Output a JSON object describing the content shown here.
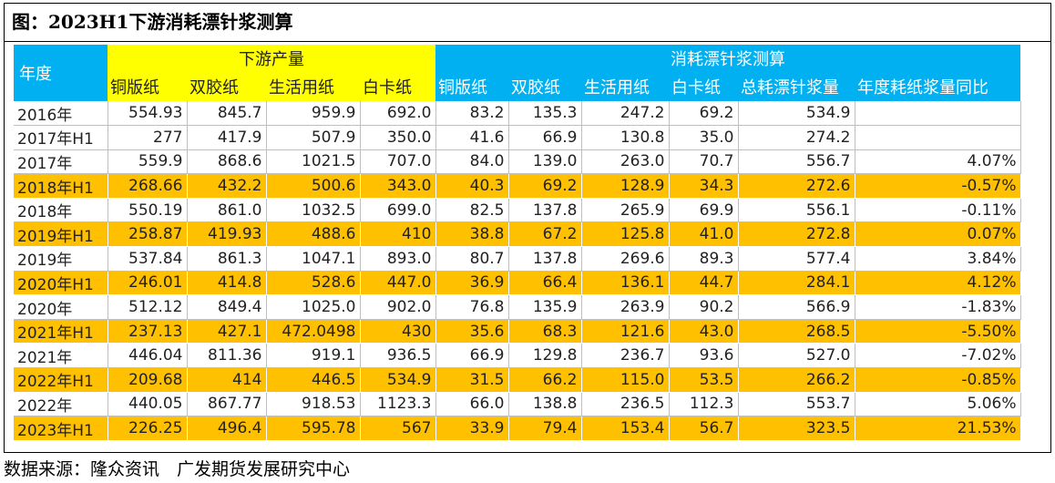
{
  "title": "图：2023H1下游消耗漂针浆测算",
  "header": {
    "year_label": "年度",
    "group_downstream": "下游产量",
    "group_consumption": "消耗漂针浆测算",
    "columns": [
      "铜版纸",
      "双胶纸",
      "生活用纸",
      "白卡纸",
      "铜版纸",
      "双胶纸",
      "生活用纸",
      "白卡纸",
      "总耗漂针浆量",
      "年度耗纸浆量同比"
    ]
  },
  "rows": [
    {
      "year": "2016年",
      "highlight": false,
      "cells": [
        "554.93",
        "845.7",
        "959.9",
        "692.0",
        "83.2",
        "135.3",
        "247.2",
        "69.2",
        "534.9",
        ""
      ]
    },
    {
      "year": "2017年H1",
      "highlight": false,
      "cells": [
        "277",
        "417.9",
        "507.9",
        "350.0",
        "41.6",
        "66.9",
        "130.8",
        "35.0",
        "274.2",
        ""
      ]
    },
    {
      "year": "2017年",
      "highlight": false,
      "cells": [
        "559.9",
        "868.6",
        "1021.5",
        "707.0",
        "84.0",
        "139.0",
        "263.0",
        "70.7",
        "556.7",
        "4.07%"
      ]
    },
    {
      "year": "2018年H1",
      "highlight": true,
      "cells": [
        "268.66",
        "432.2",
        "500.6",
        "343.0",
        "40.3",
        "69.2",
        "128.9",
        "34.3",
        "272.6",
        "-0.57%"
      ]
    },
    {
      "year": "2018年",
      "highlight": false,
      "cells": [
        "550.19",
        "861.0",
        "1032.5",
        "699.0",
        "82.5",
        "137.8",
        "265.9",
        "69.9",
        "556.1",
        "-0.11%"
      ]
    },
    {
      "year": "2019年H1",
      "highlight": true,
      "cells": [
        "258.87",
        "419.93",
        "488.6",
        "410",
        "38.8",
        "67.2",
        "125.8",
        "41.0",
        "272.8",
        "0.07%"
      ]
    },
    {
      "year": "2019年",
      "highlight": false,
      "cells": [
        "537.84",
        "861.3",
        "1047.1",
        "893.0",
        "80.7",
        "137.8",
        "269.6",
        "89.3",
        "577.4",
        "3.84%"
      ]
    },
    {
      "year": "2020年H1",
      "highlight": true,
      "cells": [
        "246.01",
        "414.8",
        "528.6",
        "447.0",
        "36.9",
        "66.4",
        "136.1",
        "44.7",
        "284.1",
        "4.12%"
      ]
    },
    {
      "year": "2020年",
      "highlight": false,
      "cells": [
        "512.12",
        "849.4",
        "1025.0",
        "902.0",
        "76.8",
        "135.9",
        "263.9",
        "90.2",
        "566.9",
        "-1.83%"
      ]
    },
    {
      "year": "2021年H1",
      "highlight": true,
      "cells": [
        "237.13",
        "427.1",
        "472.0498",
        "430",
        "35.6",
        "68.3",
        "121.6",
        "43.0",
        "268.5",
        "-5.50%"
      ]
    },
    {
      "year": "2021年",
      "highlight": false,
      "cells": [
        "446.04",
        "811.36",
        "919.1",
        "936.5",
        "66.9",
        "129.8",
        "236.7",
        "93.6",
        "527.0",
        "-7.02%"
      ]
    },
    {
      "year": "2022年H1",
      "highlight": true,
      "cells": [
        "209.68",
        "414",
        "446.5",
        "534.9",
        "31.5",
        "66.2",
        "115.0",
        "53.5",
        "266.2",
        "-0.85%"
      ]
    },
    {
      "year": "2022年",
      "highlight": false,
      "cells": [
        "440.05",
        "867.77",
        "918.53",
        "1123.3",
        "66.0",
        "138.8",
        "236.5",
        "112.3",
        "553.7",
        "5.06%"
      ]
    },
    {
      "year": "2023年H1",
      "highlight": true,
      "cells": [
        "226.25",
        "496.4",
        "595.78",
        "567",
        "33.9",
        "79.4",
        "153.4",
        "56.7",
        "323.5",
        "21.53%"
      ]
    }
  ],
  "source": "数据来源：隆众资讯　广发期货发展研究中心",
  "colors": {
    "yellow": "#ffff00",
    "blue": "#00b0f0",
    "orange": "#ffc000"
  }
}
